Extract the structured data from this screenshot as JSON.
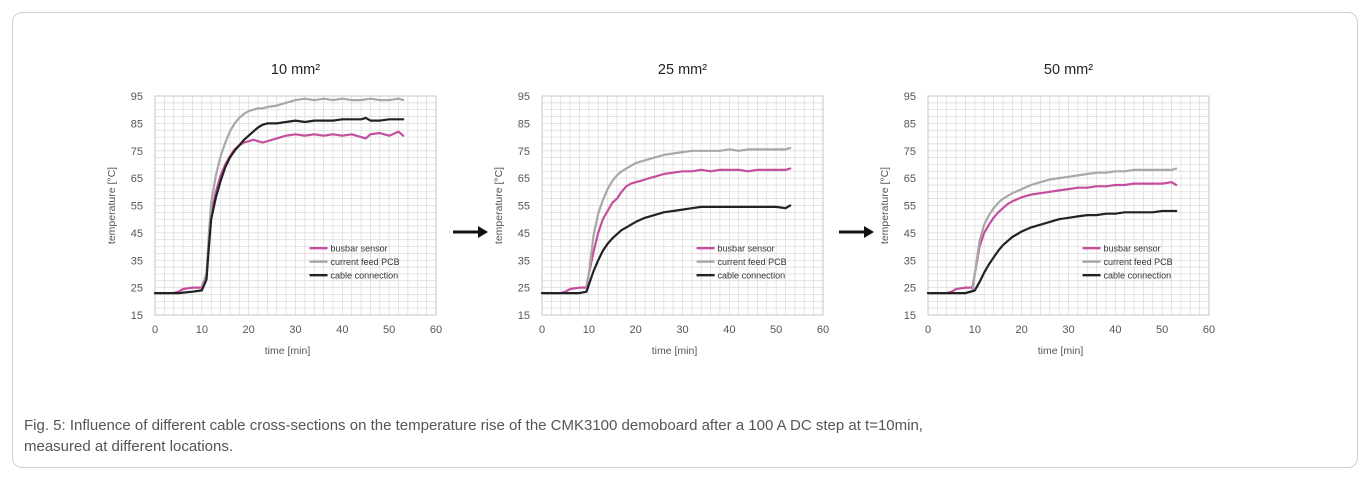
{
  "colors": {
    "busbar_sensor": "#c64e9f",
    "current_feed_pcb": "#a8a8a8",
    "cable_connection": "#222222",
    "grid": "#d9d9d9",
    "axis_text": "#555555"
  },
  "arrow_icon": "arrow-right-icon",
  "caption": {
    "line1": "Fig. 5: Influence of different cable cross-sections on the temperature rise of the CMK3100 demoboard after a 100 A DC step at t=10min,",
    "line2": "measured at different locations."
  },
  "chart_data": [
    {
      "type": "line",
      "title": "10 mm²",
      "xlabel": "time [min]",
      "ylabel": "temperature [°C]",
      "xlim": [
        0,
        60
      ],
      "ylim": [
        15,
        95
      ],
      "xticks": [
        0,
        10,
        20,
        30,
        40,
        50,
        60
      ],
      "yticks": [
        15,
        25,
        35,
        45,
        55,
        65,
        75,
        85,
        95
      ],
      "grid": true,
      "legend_position": "bottom-right",
      "series": [
        {
          "name": "busbar sensor",
          "color_key": "busbar_sensor",
          "x": [
            0,
            4,
            5,
            6,
            8,
            10,
            11,
            11.5,
            12,
            13,
            14,
            15,
            16,
            17,
            18,
            19,
            20,
            21,
            22,
            23,
            24,
            26,
            28,
            30,
            32,
            34,
            36,
            38,
            40,
            42,
            44,
            45,
            46,
            48,
            50,
            52,
            53
          ],
          "y": [
            23,
            23,
            23.5,
            24.5,
            25,
            25,
            30,
            42,
            52,
            60,
            66,
            70,
            73,
            75.5,
            77,
            78,
            78.5,
            79,
            78.5,
            78,
            78.5,
            79.5,
            80.5,
            81,
            80.5,
            81,
            80.5,
            81,
            80.5,
            81,
            80,
            79.5,
            81,
            81.5,
            80.5,
            82,
            80.5
          ]
        },
        {
          "name": "current feed PCB",
          "color_key": "current_feed_pcb",
          "x": [
            0,
            5,
            8,
            10,
            11,
            11.5,
            12,
            13,
            14,
            15,
            16,
            17,
            18,
            19,
            20,
            21,
            22,
            23,
            24,
            26,
            28,
            30,
            32,
            34,
            36,
            38,
            40,
            42,
            44,
            46,
            48,
            50,
            52,
            53
          ],
          "y": [
            23,
            23,
            23.5,
            24,
            30,
            45,
            56,
            66,
            73,
            78,
            82,
            85,
            87,
            88.5,
            89.5,
            90,
            90.5,
            90.5,
            91,
            91.5,
            92.5,
            93.5,
            94,
            93.5,
            94,
            93.5,
            94,
            93.5,
            93.5,
            94,
            93.5,
            93.5,
            94,
            93.5
          ]
        },
        {
          "name": "cable connection",
          "color_key": "cable_connection",
          "x": [
            0,
            5,
            8,
            10,
            11,
            11.5,
            12,
            13,
            14,
            15,
            16,
            17,
            18,
            19,
            20,
            21,
            22,
            23,
            24,
            26,
            28,
            30,
            32,
            34,
            36,
            38,
            40,
            42,
            44,
            45,
            46,
            48,
            50,
            52,
            53
          ],
          "y": [
            23,
            23,
            23.5,
            24,
            28,
            40,
            50,
            58,
            64,
            69,
            72.5,
            75,
            77,
            79,
            80.5,
            82,
            83.5,
            84.5,
            85,
            85,
            85.5,
            86,
            85.5,
            86,
            86,
            86,
            86.5,
            86.5,
            86.5,
            87,
            86,
            86,
            86.5,
            86.5,
            86.5
          ]
        }
      ]
    },
    {
      "type": "line",
      "title": "25 mm²",
      "xlabel": "time [min]",
      "ylabel": "temperature [°C]",
      "xlim": [
        0,
        60
      ],
      "ylim": [
        15,
        95
      ],
      "xticks": [
        0,
        10,
        20,
        30,
        40,
        50,
        60
      ],
      "yticks": [
        15,
        25,
        35,
        45,
        55,
        65,
        75,
        85,
        95
      ],
      "grid": true,
      "legend_position": "bottom-right",
      "series": [
        {
          "name": "busbar sensor",
          "color_key": "busbar_sensor",
          "x": [
            0,
            4,
            5,
            6,
            8,
            9.5,
            10,
            11,
            12,
            13,
            14,
            15,
            16,
            17,
            18,
            19,
            20,
            21,
            22,
            23,
            24,
            26,
            28,
            30,
            32,
            34,
            36,
            38,
            40,
            42,
            44,
            46,
            48,
            50,
            52,
            53
          ],
          "y": [
            23,
            23,
            23.5,
            24.5,
            25,
            25,
            30,
            38,
            45,
            50,
            53,
            56,
            57.5,
            60,
            62,
            63,
            63.5,
            64,
            64.5,
            65,
            65.5,
            66.5,
            67,
            67.5,
            67.5,
            68,
            67.5,
            68,
            68,
            68,
            67.5,
            68,
            68,
            68,
            68,
            68.5
          ]
        },
        {
          "name": "current feed PCB",
          "color_key": "current_feed_pcb",
          "x": [
            0,
            5,
            8,
            9.5,
            10,
            11,
            12,
            13,
            14,
            15,
            16,
            17,
            18,
            19,
            20,
            22,
            24,
            26,
            28,
            30,
            32,
            34,
            36,
            38,
            40,
            42,
            44,
            46,
            48,
            50,
            52,
            53
          ],
          "y": [
            23,
            23,
            23,
            23.5,
            30,
            44,
            52,
            57,
            61,
            64,
            66,
            67.5,
            68.5,
            69.5,
            70.5,
            71.5,
            72.5,
            73.5,
            74,
            74.5,
            75,
            75,
            75,
            75,
            75.5,
            75,
            75.5,
            75.5,
            75.5,
            75.5,
            75.5,
            76
          ]
        },
        {
          "name": "cable connection",
          "color_key": "cable_connection",
          "x": [
            0,
            5,
            8,
            9.5,
            10,
            11,
            12,
            13,
            14,
            15,
            16,
            17,
            18,
            19,
            20,
            22,
            24,
            26,
            28,
            30,
            32,
            34,
            36,
            38,
            40,
            42,
            44,
            46,
            48,
            50,
            52,
            53
          ],
          "y": [
            23,
            23,
            23,
            23.5,
            26,
            31,
            35,
            38.5,
            41,
            43,
            44.5,
            46,
            47,
            48,
            49,
            50.5,
            51.5,
            52.5,
            53,
            53.5,
            54,
            54.5,
            54.5,
            54.5,
            54.5,
            54.5,
            54.5,
            54.5,
            54.5,
            54.5,
            54,
            55
          ]
        }
      ]
    },
    {
      "type": "line",
      "title": "50 mm²",
      "xlabel": "time [min]",
      "ylabel": "temperature [°C]",
      "xlim": [
        0,
        60
      ],
      "ylim": [
        15,
        95
      ],
      "xticks": [
        0,
        10,
        20,
        30,
        40,
        50,
        60
      ],
      "yticks": [
        15,
        25,
        35,
        45,
        55,
        65,
        75,
        85,
        95
      ],
      "grid": true,
      "legend_position": "bottom-right",
      "series": [
        {
          "name": "busbar sensor",
          "color_key": "busbar_sensor",
          "x": [
            0,
            4,
            5,
            6,
            8,
            9.5,
            10,
            11,
            12,
            13,
            14,
            15,
            16,
            17,
            18,
            20,
            22,
            24,
            26,
            28,
            30,
            32,
            34,
            36,
            38,
            40,
            42,
            44,
            46,
            48,
            50,
            52,
            53
          ],
          "y": [
            23,
            23,
            23.5,
            24.5,
            25,
            25,
            30,
            40,
            45,
            48,
            50.5,
            52.5,
            54,
            55.5,
            56.5,
            58,
            59,
            59.5,
            60,
            60.5,
            61,
            61.5,
            61.5,
            62,
            62,
            62.5,
            62.5,
            63,
            63,
            63,
            63,
            63.5,
            62.5
          ]
        },
        {
          "name": "current feed PCB",
          "color_key": "current_feed_pcb",
          "x": [
            0,
            5,
            8,
            9.5,
            10,
            11,
            12,
            13,
            14,
            15,
            16,
            17,
            18,
            20,
            22,
            24,
            26,
            28,
            30,
            32,
            34,
            36,
            38,
            40,
            42,
            44,
            46,
            48,
            50,
            52,
            53
          ],
          "y": [
            23,
            23,
            23,
            23.5,
            30,
            42,
            48,
            51.5,
            54,
            56,
            57.5,
            58.5,
            59.5,
            61,
            62.5,
            63.5,
            64.5,
            65,
            65.5,
            66,
            66.5,
            67,
            67,
            67.5,
            67.5,
            68,
            68,
            68,
            68,
            68,
            68.5
          ]
        },
        {
          "name": "cable connection",
          "color_key": "cable_connection",
          "x": [
            0,
            5,
            8,
            10,
            11,
            12,
            13,
            14,
            15,
            16,
            17,
            18,
            20,
            22,
            24,
            26,
            28,
            30,
            32,
            34,
            36,
            38,
            40,
            42,
            44,
            46,
            48,
            50,
            52,
            53
          ],
          "y": [
            23,
            23,
            23,
            24,
            27,
            30.5,
            33.5,
            36,
            38.5,
            40.5,
            42,
            43.5,
            45.5,
            47,
            48,
            49,
            50,
            50.5,
            51,
            51.5,
            51.5,
            52,
            52,
            52.5,
            52.5,
            52.5,
            52.5,
            53,
            53,
            53
          ]
        }
      ]
    }
  ]
}
